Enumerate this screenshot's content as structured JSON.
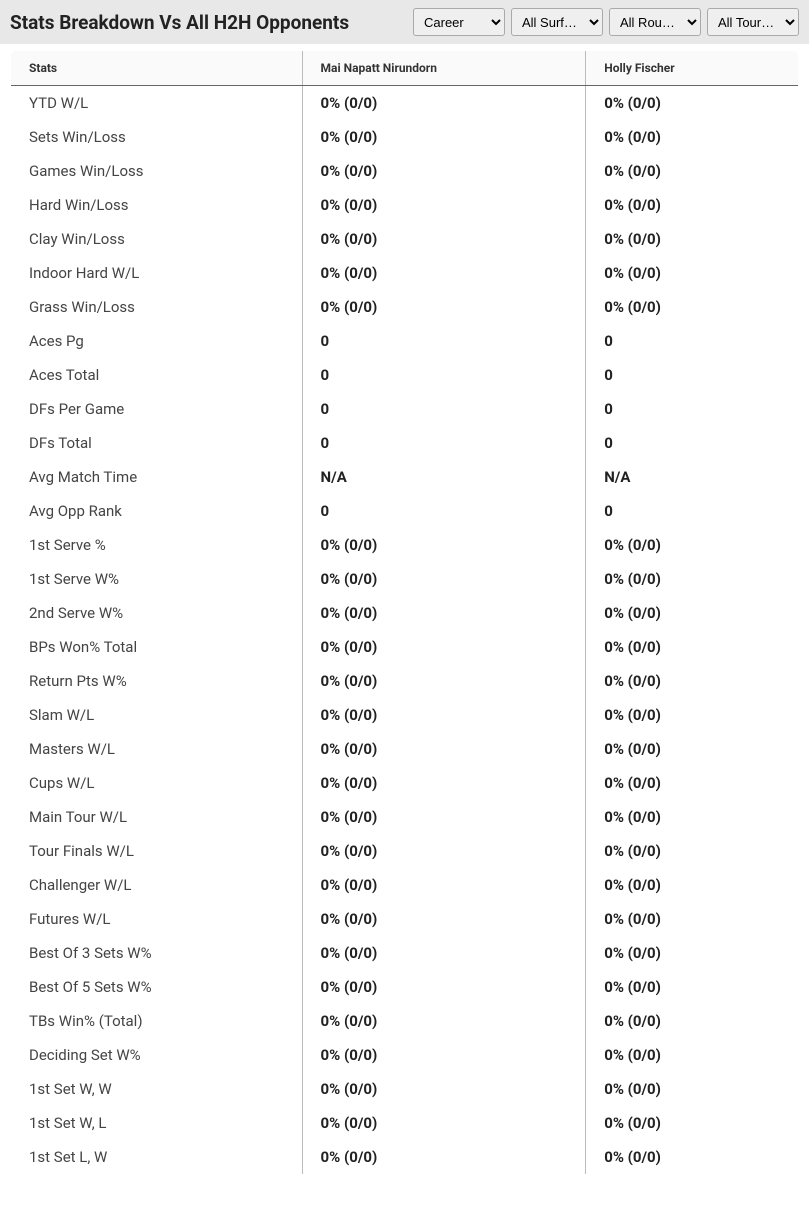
{
  "header": {
    "title": "Stats Breakdown Vs All H2H Opponents"
  },
  "filters": {
    "period": {
      "selected": "Career"
    },
    "surface": {
      "selected": "All Surf…"
    },
    "round": {
      "selected": "All Rou…"
    },
    "tour": {
      "selected": "All Tour…"
    }
  },
  "table": {
    "columns": {
      "stats": "Stats",
      "player1": "Mai Napatt Nirundorn",
      "player2": "Holly Fischer"
    },
    "rows": [
      {
        "label": "YTD W/L",
        "p1": "0% (0/0)",
        "p2": "0% (0/0)"
      },
      {
        "label": "Sets Win/Loss",
        "p1": "0% (0/0)",
        "p2": "0% (0/0)"
      },
      {
        "label": "Games Win/Loss",
        "p1": "0% (0/0)",
        "p2": "0% (0/0)"
      },
      {
        "label": "Hard Win/Loss",
        "p1": "0% (0/0)",
        "p2": "0% (0/0)"
      },
      {
        "label": "Clay Win/Loss",
        "p1": "0% (0/0)",
        "p2": "0% (0/0)"
      },
      {
        "label": "Indoor Hard W/L",
        "p1": "0% (0/0)",
        "p2": "0% (0/0)"
      },
      {
        "label": "Grass Win/Loss",
        "p1": "0% (0/0)",
        "p2": "0% (0/0)"
      },
      {
        "label": "Aces Pg",
        "p1": "0",
        "p2": "0"
      },
      {
        "label": "Aces Total",
        "p1": "0",
        "p2": "0"
      },
      {
        "label": "DFs Per Game",
        "p1": "0",
        "p2": "0"
      },
      {
        "label": "DFs Total",
        "p1": "0",
        "p2": "0"
      },
      {
        "label": "Avg Match Time",
        "p1": "N/A",
        "p2": "N/A"
      },
      {
        "label": "Avg Opp Rank",
        "p1": "0",
        "p2": "0"
      },
      {
        "label": "1st Serve %",
        "p1": "0% (0/0)",
        "p2": "0% (0/0)"
      },
      {
        "label": "1st Serve W%",
        "p1": "0% (0/0)",
        "p2": "0% (0/0)"
      },
      {
        "label": "2nd Serve W%",
        "p1": "0% (0/0)",
        "p2": "0% (0/0)"
      },
      {
        "label": "BPs Won% Total",
        "p1": "0% (0/0)",
        "p2": "0% (0/0)"
      },
      {
        "label": "Return Pts W%",
        "p1": "0% (0/0)",
        "p2": "0% (0/0)"
      },
      {
        "label": "Slam W/L",
        "p1": "0% (0/0)",
        "p2": "0% (0/0)"
      },
      {
        "label": "Masters W/L",
        "p1": "0% (0/0)",
        "p2": "0% (0/0)"
      },
      {
        "label": "Cups W/L",
        "p1": "0% (0/0)",
        "p2": "0% (0/0)"
      },
      {
        "label": "Main Tour W/L",
        "p1": "0% (0/0)",
        "p2": "0% (0/0)"
      },
      {
        "label": "Tour Finals W/L",
        "p1": "0% (0/0)",
        "p2": "0% (0/0)"
      },
      {
        "label": "Challenger W/L",
        "p1": "0% (0/0)",
        "p2": "0% (0/0)"
      },
      {
        "label": "Futures W/L",
        "p1": "0% (0/0)",
        "p2": "0% (0/0)"
      },
      {
        "label": "Best Of 3 Sets W%",
        "p1": "0% (0/0)",
        "p2": "0% (0/0)"
      },
      {
        "label": "Best Of 5 Sets W%",
        "p1": "0% (0/0)",
        "p2": "0% (0/0)"
      },
      {
        "label": "TBs Win% (Total)",
        "p1": "0% (0/0)",
        "p2": "0% (0/0)"
      },
      {
        "label": "Deciding Set W%",
        "p1": "0% (0/0)",
        "p2": "0% (0/0)"
      },
      {
        "label": "1st Set W, W",
        "p1": "0% (0/0)",
        "p2": "0% (0/0)"
      },
      {
        "label": "1st Set W, L",
        "p1": "0% (0/0)",
        "p2": "0% (0/0)"
      },
      {
        "label": "1st Set L, W",
        "p1": "0% (0/0)",
        "p2": "0% (0/0)"
      }
    ]
  }
}
